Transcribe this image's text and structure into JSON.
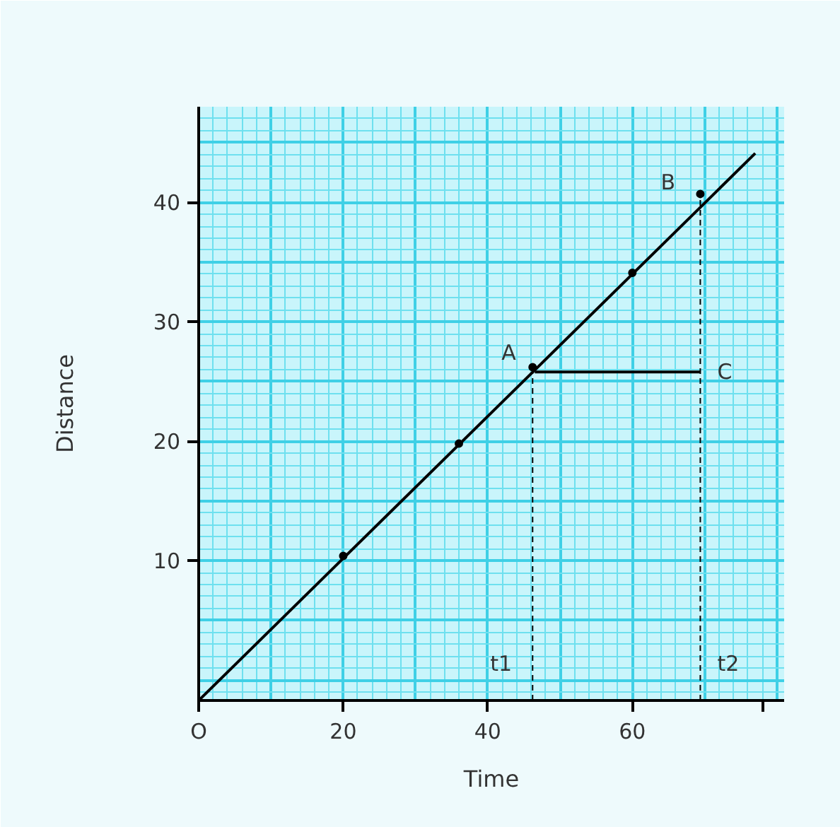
{
  "chart_data": {
    "type": "line",
    "xlabel": "Time",
    "ylabel": "Distance",
    "xlim": [
      0,
      81
    ],
    "ylim": [
      -1.7,
      48
    ],
    "xticks": [
      20,
      40,
      60,
      {
        "value": 78,
        "label": null
      }
    ],
    "yticks": [
      10,
      20,
      30,
      40
    ],
    "grid": true,
    "series": [
      {
        "color": "#000000",
        "x": [
          0,
          77
        ],
        "values": [
          -1.7,
          44.1
        ],
        "line_style": "solid"
      },
      {
        "type": "scatter",
        "color": "#000000",
        "marker": "circle",
        "x": [
          20,
          36,
          46.2,
          60,
          69.4
        ],
        "values": [
          10.4,
          19.8,
          26.2,
          34.1,
          40.7
        ]
      },
      {
        "color": "#000000",
        "x": [
          46.2,
          46.2
        ],
        "values": [
          -1.7,
          26.2
        ],
        "line_style": "dashed"
      },
      {
        "color": "#000000",
        "x": [
          69.4,
          69.4
        ],
        "values": [
          -1.7,
          40.7
        ],
        "line_style": "dashed"
      },
      {
        "color": "#000000",
        "x": [
          46.5,
          69.4
        ],
        "values": [
          25.8,
          25.8
        ],
        "line_style": "solid"
      }
    ],
    "annotations": [
      "O",
      "A",
      "B",
      "C",
      "t1",
      "t2"
    ]
  }
}
